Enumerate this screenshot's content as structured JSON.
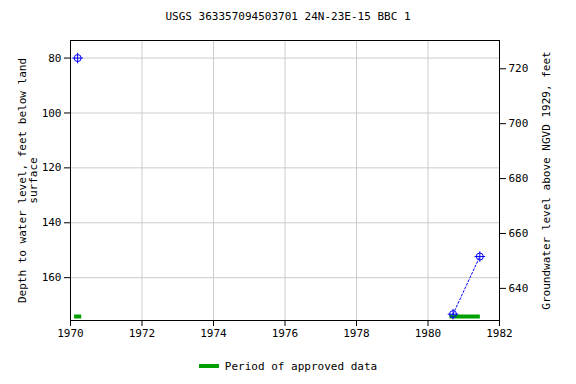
{
  "chart_data": {
    "type": "scatter",
    "title": "USGS 363357094503701 24N-23E-15 BBC 1",
    "x_label": null,
    "y_label": "Depth to water level, feet below land\nsurface",
    "y2_label": "Groundwater level above NGVD 1929, feet",
    "x": [
      1970.2,
      null,
      1980.7,
      1981.45
    ],
    "series": [
      {
        "name": "Depth to water level",
        "color": "#0000ff",
        "marker": "circle",
        "line_style": "dotted",
        "values": [
          80,
          null,
          173.3,
          152.3
        ]
      }
    ],
    "xlim": [
      1970,
      1982
    ],
    "xticks": [
      1970,
      1972,
      1974,
      1976,
      1978,
      1980,
      1982
    ],
    "ylim": [
      175.6,
      73.6
    ],
    "yticks": [
      80,
      100,
      120,
      140,
      160
    ],
    "y2lim": [
      628.3,
      730.3
    ],
    "y2ticks": [
      640,
      660,
      680,
      700,
      720
    ],
    "grid": true,
    "approved_periods": {
      "name": "Period of approved data",
      "color": "#00a000",
      "ranges": [
        [
          1970.1,
          1970.3
        ],
        [
          1980.6,
          1981.45
        ]
      ]
    }
  }
}
